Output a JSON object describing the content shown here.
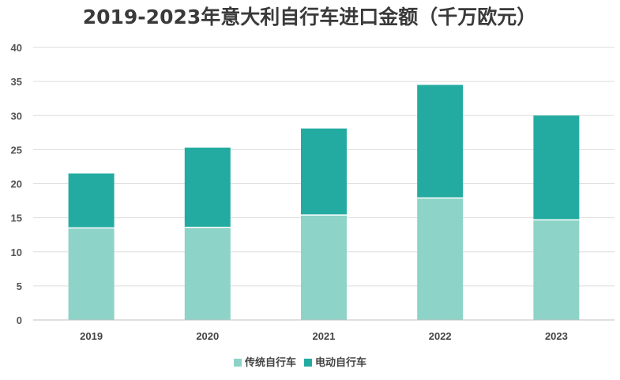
{
  "chart_data": {
    "type": "bar",
    "stacked": true,
    "title": "2019-2023年意大利自行车进口金额（千万欧元）",
    "xlabel": "",
    "ylabel": "",
    "categories": [
      "2019",
      "2020",
      "2021",
      "2022",
      "2023"
    ],
    "yticks": [
      "0",
      "5",
      "10",
      "15",
      "20",
      "25",
      "30",
      "35",
      "40"
    ],
    "ylim": [
      0,
      40
    ],
    "grid": true,
    "legend_position": "bottom",
    "series": [
      {
        "name": "传统自行车",
        "color": "#8dd3c7",
        "values": [
          13.5,
          13.6,
          15.4,
          17.9,
          14.7
        ]
      },
      {
        "name": "电动自行车",
        "color": "#24aba1",
        "values": [
          8.0,
          11.7,
          12.7,
          16.6,
          15.3
        ]
      }
    ]
  }
}
